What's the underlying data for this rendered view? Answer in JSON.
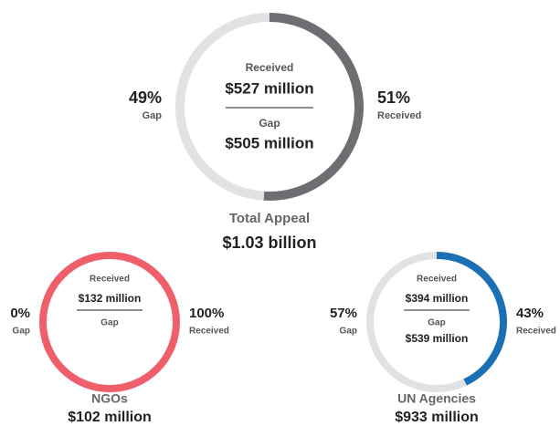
{
  "chart_data": [
    {
      "type": "donut",
      "title": "Total Appeal",
      "total": "$1.03 billion",
      "categories": [
        "Received",
        "Gap"
      ],
      "values": [
        51,
        49
      ],
      "value_labels": [
        "51%",
        "49%"
      ],
      "amounts": [
        "$527 million",
        "$505 million"
      ],
      "colors": [
        "#6d6e71",
        "#e1e2e4"
      ]
    },
    {
      "type": "donut",
      "title": "NGOs",
      "total": "$102 million",
      "categories": [
        "Received",
        "Gap"
      ],
      "values": [
        100,
        0
      ],
      "value_labels": [
        "100%",
        "0%"
      ],
      "amounts": [
        "$132 million",
        null
      ],
      "colors": [
        "#ef5f6b",
        "#e1e2e4"
      ]
    },
    {
      "type": "donut",
      "title": "UN Agencies",
      "total": "$933 million",
      "categories": [
        "Received",
        "Gap"
      ],
      "values": [
        43,
        57
      ],
      "value_labels": [
        "43%",
        "57%"
      ],
      "amounts": [
        "$394 million",
        "$539 million"
      ],
      "colors": [
        "#1a6fb5",
        "#e1e2e4"
      ]
    }
  ]
}
